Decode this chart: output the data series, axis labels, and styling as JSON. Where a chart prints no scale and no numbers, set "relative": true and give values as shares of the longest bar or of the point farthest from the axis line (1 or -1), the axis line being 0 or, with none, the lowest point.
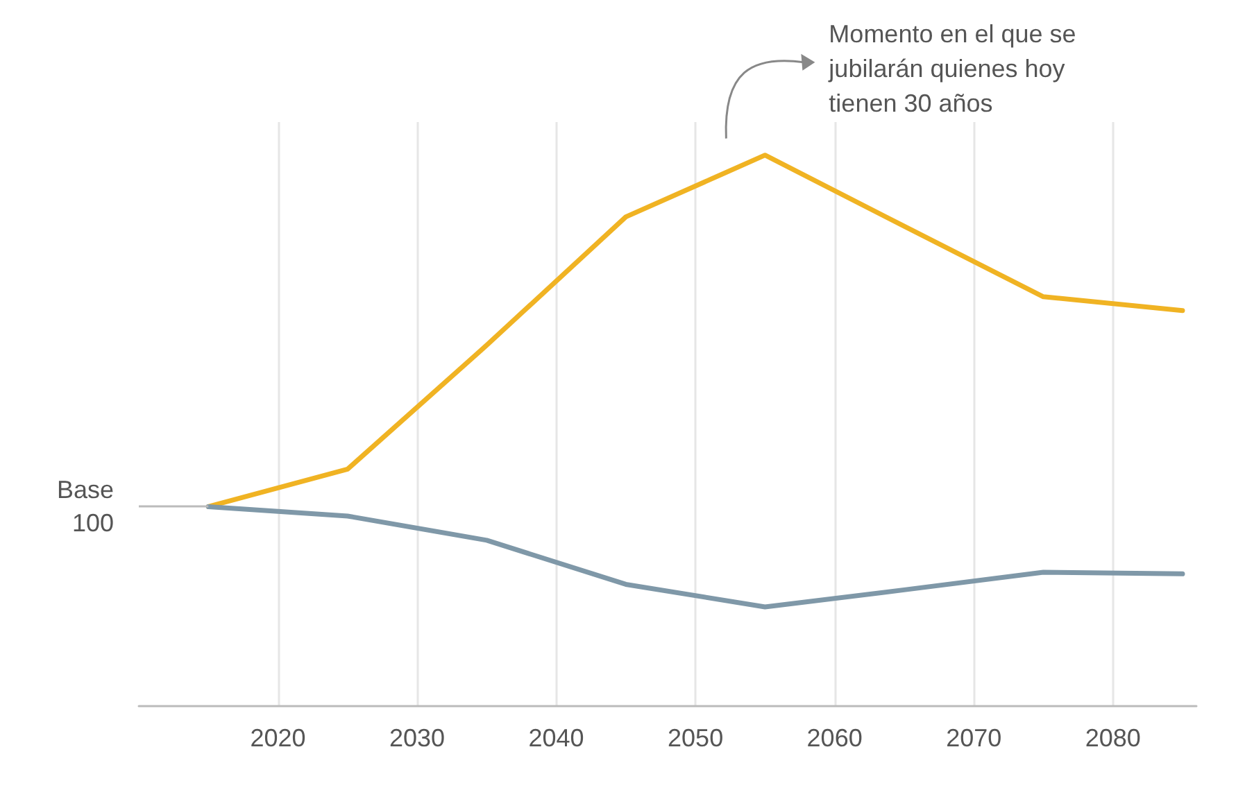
{
  "chart_data": {
    "type": "line",
    "relative": true,
    "x": [
      2015,
      2025,
      2035,
      2045,
      2055,
      2065,
      2075,
      2085
    ],
    "series": [
      {
        "color": "#f0b323",
        "values": [
          0.362,
          0.43,
          0.655,
          0.888,
          1,
          0.871,
          0.743,
          0.718
        ]
      },
      {
        "color": "#7f98a8",
        "values": [
          0.362,
          0.345,
          0.301,
          0.221,
          0.18,
          0.211,
          0.243,
          0.24
        ]
      }
    ],
    "xlim": [
      2010,
      2086
    ],
    "xticks": [
      2020,
      2030,
      2040,
      2050,
      2060,
      2070,
      2080
    ],
    "grid": "x",
    "marker": "none",
    "line_style": "solid",
    "ref_lines": [
      {
        "axis": "y",
        "value": 0.362,
        "label": "Base\n100",
        "color": "#bbbbbb"
      }
    ],
    "annotations": [
      {
        "text": "Momento en el que se\njubilarán quienes hoy\ntienen 30 años",
        "x": 2055,
        "y": 1
      }
    ]
  }
}
